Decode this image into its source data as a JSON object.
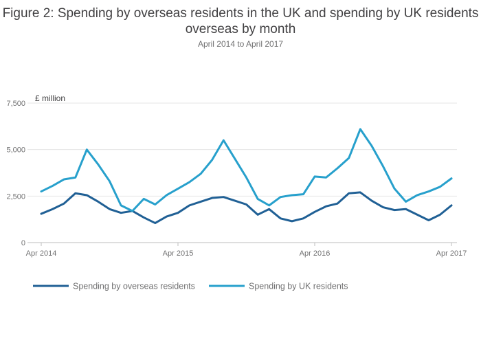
{
  "chart_data": {
    "type": "line",
    "title": "Figure 2: Spending by overseas residents in the UK and spending by UK residents overseas by month",
    "subtitle": "April 2014 to April 2017",
    "ylabel": "£ million",
    "xlabel": "",
    "ylim": [
      0,
      7500
    ],
    "yticks": [
      0,
      2500,
      5000,
      7500
    ],
    "ytick_labels": [
      "0",
      "2,500",
      "5,000",
      "7,500"
    ],
    "xtick_indices": [
      0,
      12,
      24,
      36
    ],
    "xtick_labels": [
      "Apr 2014",
      "Apr 2015",
      "Apr 2016",
      "Apr 2017"
    ],
    "categories": [
      "Apr 2014",
      "May 2014",
      "Jun 2014",
      "Jul 2014",
      "Aug 2014",
      "Sep 2014",
      "Oct 2014",
      "Nov 2014",
      "Dec 2014",
      "Jan 2015",
      "Feb 2015",
      "Mar 2015",
      "Apr 2015",
      "May 2015",
      "Jun 2015",
      "Jul 2015",
      "Aug 2015",
      "Sep 2015",
      "Oct 2015",
      "Nov 2015",
      "Dec 2015",
      "Jan 2016",
      "Feb 2016",
      "Mar 2016",
      "Apr 2016",
      "May 2016",
      "Jun 2016",
      "Jul 2016",
      "Aug 2016",
      "Sep 2016",
      "Oct 2016",
      "Nov 2016",
      "Dec 2016",
      "Jan 2017",
      "Feb 2017",
      "Mar 2017",
      "Apr 2017"
    ],
    "grid": true,
    "legend_position": "bottom",
    "series": [
      {
        "name": "Spending by overseas residents",
        "color": "#206095",
        "values": [
          1550,
          1800,
          2100,
          2650,
          2550,
          2200,
          1800,
          1600,
          1700,
          1350,
          1050,
          1400,
          1600,
          2000,
          2200,
          2400,
          2450,
          2250,
          2050,
          1500,
          1800,
          1300,
          1150,
          1300,
          1650,
          1950,
          2100,
          2650,
          2700,
          2250,
          1900,
          1750,
          1800,
          1500,
          1200,
          1500,
          2000
        ]
      },
      {
        "name": "Spending by UK residents",
        "color": "#27a0cc",
        "values": [
          2750,
          3050,
          3400,
          3500,
          5000,
          4200,
          3300,
          2000,
          1700,
          2350,
          2050,
          2550,
          2900,
          3250,
          3700,
          4450,
          5500,
          4500,
          3500,
          2350,
          2000,
          2450,
          2550,
          2600,
          3550,
          3500,
          4000,
          4550,
          6100,
          5200,
          4100,
          2900,
          2200,
          2550,
          2750,
          3000,
          3450
        ]
      }
    ]
  }
}
